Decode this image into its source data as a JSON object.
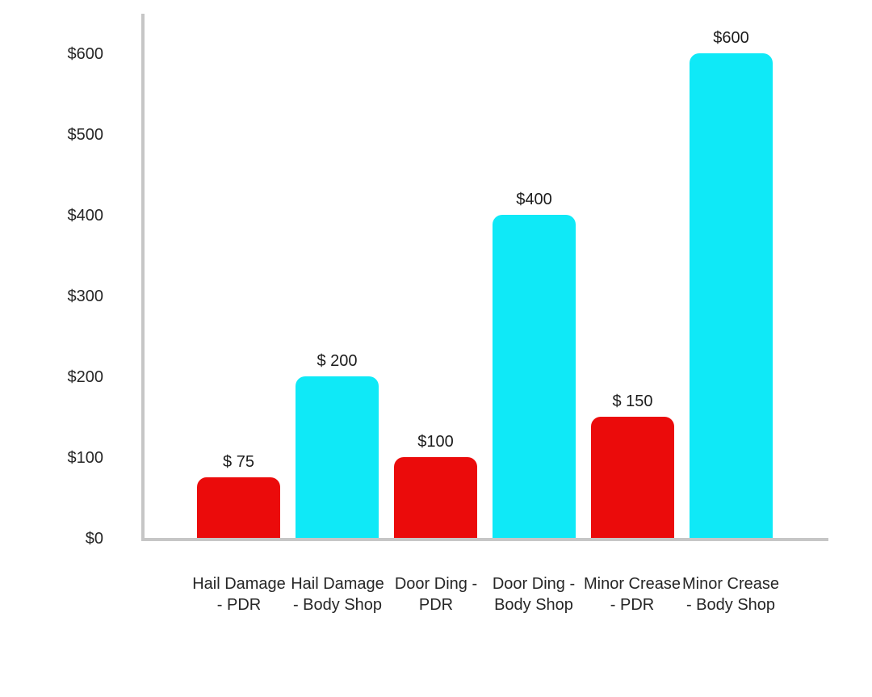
{
  "chart_data": {
    "type": "bar",
    "title": "",
    "xlabel": "",
    "ylabel": "",
    "categories": [
      "Hail Damage - PDR",
      "Hail Damage - Body Shop",
      "Door Ding - PDR",
      "Door Ding - Body Shop",
      "Minor Crease - PDR",
      "Minor Crease - Body Shop"
    ],
    "values": [
      75,
      200,
      100,
      400,
      150,
      600
    ],
    "data_labels": [
      "$ 75",
      "$ 200",
      "$100",
      "$400",
      "$ 150",
      "$600"
    ],
    "bar_colors": [
      "#EB0B0B",
      "#0FE9F7",
      "#EB0B0B",
      "#0FE9F7",
      "#EB0B0B",
      "#0FE9F7"
    ],
    "ylim": [
      0,
      600
    ],
    "ytick_values": [
      0,
      100,
      200,
      300,
      400,
      500,
      600
    ],
    "ytick_labels": [
      "$0",
      "$100",
      "$200",
      "$300",
      "$400",
      "$500",
      "$600"
    ],
    "grid": false,
    "legend": "none",
    "x_label_lines": [
      [
        "Hail Damage",
        "- PDR"
      ],
      [
        "Hail Damage",
        "- Body Shop"
      ],
      [
        "Door Ding -",
        "PDR"
      ],
      [
        "Door Ding -",
        "Body Shop"
      ],
      [
        "Minor Crease",
        "- PDR"
      ],
      [
        "Minor Crease",
        "- Body Shop"
      ]
    ]
  },
  "colors": {
    "bar_red": "#EB0B0B",
    "bar_cyan": "#0FE9F7",
    "axis_line": "#C6C6C6",
    "text": "#262626",
    "background": "#FFFFFF"
  }
}
